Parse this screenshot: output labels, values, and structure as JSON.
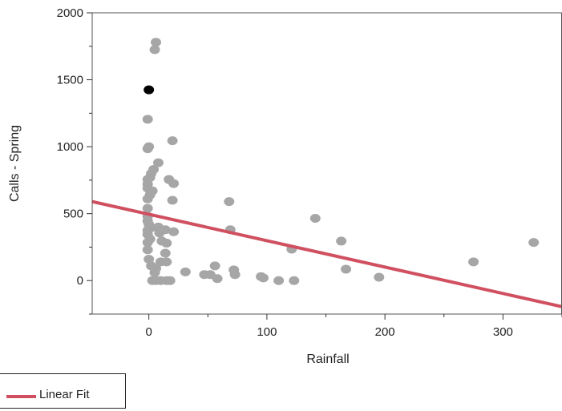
{
  "chart_data": {
    "type": "scatter",
    "xlabel": "Rainfall",
    "ylabel": "Calls - Spring",
    "xlim": [
      -48,
      350
    ],
    "ylim": [
      -250,
      2000
    ],
    "xticks": [
      0,
      100,
      200,
      300
    ],
    "yticks": [
      0,
      500,
      1000,
      1500,
      2000
    ],
    "grid": false,
    "point_color": "#a6a6a6",
    "highlight_color": "#000000",
    "fit_color": "#d05060",
    "points": [
      [
        6,
        1780
      ],
      [
        5,
        1725
      ],
      [
        -1,
        1205
      ],
      [
        0,
        1000
      ],
      [
        -1,
        985
      ],
      [
        20,
        1045
      ],
      [
        8,
        880
      ],
      [
        4,
        830
      ],
      [
        2,
        800
      ],
      [
        1,
        770
      ],
      [
        -1,
        755
      ],
      [
        -1,
        720
      ],
      [
        -1,
        690
      ],
      [
        3,
        670
      ],
      [
        1,
        640
      ],
      [
        -1,
        610
      ],
      [
        17,
        755
      ],
      [
        21,
        725
      ],
      [
        20,
        600
      ],
      [
        -1,
        540
      ],
      [
        -1,
        480
      ],
      [
        -1,
        445
      ],
      [
        0,
        420
      ],
      [
        2,
        395
      ],
      [
        -1,
        375
      ],
      [
        8,
        400
      ],
      [
        14,
        380
      ],
      [
        21,
        365
      ],
      [
        9,
        355
      ],
      [
        -1,
        345
      ],
      [
        1,
        310
      ],
      [
        -1,
        285
      ],
      [
        11,
        295
      ],
      [
        15,
        280
      ],
      [
        14,
        205
      ],
      [
        -1,
        230
      ],
      [
        0,
        160
      ],
      [
        10,
        140
      ],
      [
        15,
        140
      ],
      [
        2,
        110
      ],
      [
        6,
        90
      ],
      [
        5,
        60
      ],
      [
        3,
        0
      ],
      [
        6,
        0
      ],
      [
        10,
        0
      ],
      [
        15,
        0
      ],
      [
        18,
        0
      ],
      [
        31,
        65
      ],
      [
        47,
        45
      ],
      [
        52,
        45
      ],
      [
        56,
        110
      ],
      [
        58,
        15
      ],
      [
        68,
        590
      ],
      [
        69,
        380
      ],
      [
        72,
        80
      ],
      [
        73,
        45
      ],
      [
        95,
        30
      ],
      [
        97,
        20
      ],
      [
        110,
        0
      ],
      [
        121,
        235
      ],
      [
        123,
        0
      ],
      [
        141,
        465
      ],
      [
        163,
        295
      ],
      [
        167,
        85
      ],
      [
        195,
        25
      ],
      [
        275,
        140
      ],
      [
        326,
        285
      ]
    ],
    "highlight_points": [
      [
        0,
        1425
      ]
    ],
    "fit_line": {
      "x": [
        -48,
        350
      ],
      "y": [
        590,
        -195
      ]
    },
    "legend": {
      "entries": [
        "Linear Fit"
      ],
      "position": "bottom-left"
    }
  }
}
